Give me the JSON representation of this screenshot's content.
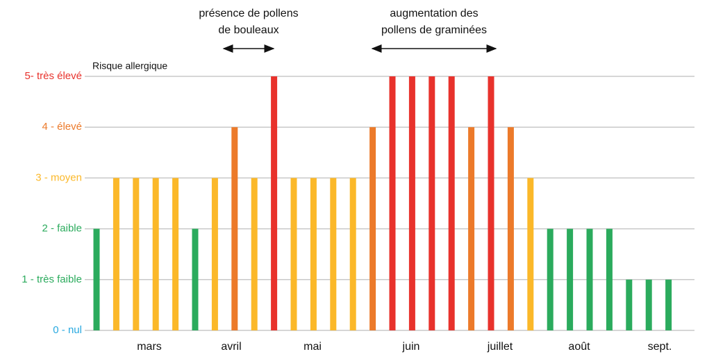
{
  "chart_data": {
    "type": "bar",
    "y_label": "Risque allergique",
    "categories": [
      null,
      null,
      null,
      null,
      null,
      null,
      null,
      null,
      null,
      null,
      null,
      null,
      null,
      null,
      null,
      null,
      null,
      null,
      null,
      null,
      null,
      null,
      null,
      null,
      null,
      null,
      null,
      null,
      null,
      null
    ],
    "values": [
      2,
      3,
      3,
      3,
      3,
      2,
      3,
      4,
      3,
      5,
      3,
      3,
      3,
      3,
      4,
      5,
      5,
      5,
      5,
      4,
      5,
      4,
      3,
      2,
      2,
      2,
      2,
      1,
      1,
      1
    ],
    "months": [
      "mars",
      "avril",
      "mai",
      "juin",
      "juillet",
      "août",
      "sept."
    ],
    "ylim": [
      0,
      5
    ],
    "yticks": [
      {
        "value": 0,
        "label": "0 - nul",
        "color": "#29a9e0"
      },
      {
        "value": 1,
        "label": "1 - très faible",
        "color": "#2bab5d"
      },
      {
        "value": 2,
        "label": "2 - faible",
        "color": "#2bab5d"
      },
      {
        "value": 3,
        "label": "3 - moyen",
        "color": "#fbb829"
      },
      {
        "value": 4,
        "label": "4 - élevé",
        "color": "#ec7a2a"
      },
      {
        "value": 5,
        "label": "5- très élevé",
        "color": "#e8322c"
      }
    ],
    "grid": true,
    "annotations": [
      {
        "lines": [
          "présence de pollens",
          "de bouleaux"
        ]
      },
      {
        "lines": [
          "augmentation des",
          "pollens de graminées"
        ]
      }
    ]
  }
}
